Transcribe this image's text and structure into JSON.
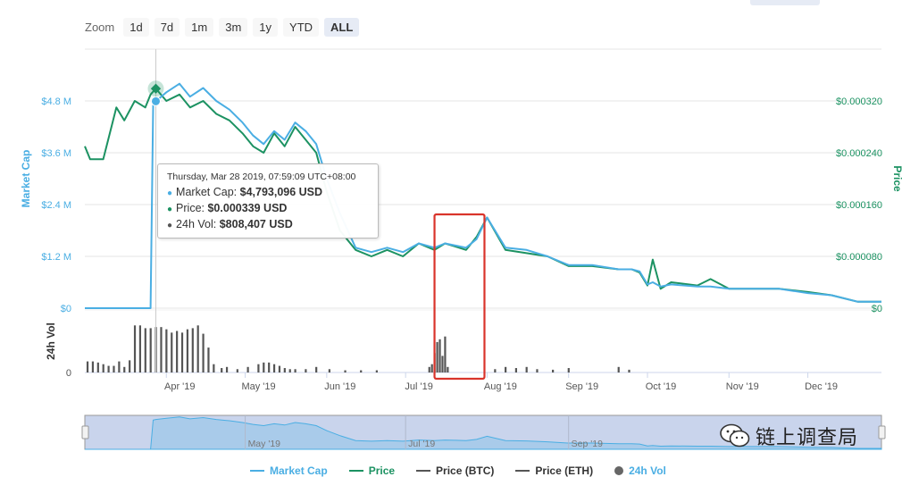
{
  "zoom": {
    "label": "Zoom",
    "buttons": [
      "1d",
      "7d",
      "1m",
      "3m",
      "1y",
      "YTD",
      "ALL"
    ],
    "active": "ALL"
  },
  "tooltip": {
    "date": "Thursday, Mar 28 2019, 07:59:09 UTC+08:00",
    "market_cap_label": "Market Cap:",
    "market_cap_value": "$4,793,096 USD",
    "price_label": "Price:",
    "price_value": "$0.000339 USD",
    "vol_label": "24h Vol:",
    "vol_value": "$808,407 USD"
  },
  "legend": [
    {
      "label": "Market Cap",
      "color": "#4aaee3",
      "kind": "line"
    },
    {
      "label": "Price",
      "color": "#1c9262",
      "kind": "line"
    },
    {
      "label": "Price (BTC)",
      "color": "#555555",
      "kind": "line"
    },
    {
      "label": "Price (ETH)",
      "color": "#555555",
      "kind": "line"
    },
    {
      "label": "24h Vol",
      "color": "#666666",
      "kind": "dot"
    }
  ],
  "navigator": {
    "ticks": [
      "May '19",
      "Jul '19",
      "Sep '19"
    ]
  },
  "watermark": "链上调查局",
  "colors": {
    "market_cap": "#4aaee3",
    "price": "#1c9262",
    "volume": "#555555",
    "highlight": "#d9342b",
    "navigator_fill": "#c9d4ec"
  },
  "chart_data": {
    "type": "line",
    "x_tick_labels": [
      "Apr '19",
      "May '19",
      "Jun '19",
      "Jul '19",
      "Aug '19",
      "Sep '19",
      "Oct '19",
      "Nov '19",
      "Dec '19"
    ],
    "x_tick_dates": [
      "2019-04-01",
      "2019-05-01",
      "2019-06-01",
      "2019-07-01",
      "2019-08-01",
      "2019-09-01",
      "2019-10-01",
      "2019-11-01",
      "2019-12-01"
    ],
    "x_range": [
      "2019-03-01",
      "2019-12-29"
    ],
    "y_left": {
      "label": "Market Cap",
      "ticks": [
        "$0",
        "$1.2 M",
        "$2.4 M",
        "$3.6 M",
        "$4.8 M"
      ],
      "ylim": [
        0,
        6000000
      ]
    },
    "y_right": {
      "label": "Price",
      "ticks": [
        "$0",
        "$0.000080",
        "$0.000160",
        "$0.000240",
        "$0.000320"
      ],
      "ylim": [
        0,
        0.0004
      ]
    },
    "y_vol": {
      "label": "24h Vol",
      "ticks": [
        "0"
      ]
    },
    "series": [
      {
        "name": "Market Cap",
        "x": [
          "2019-03-01",
          "2019-03-20",
          "2019-03-26",
          "2019-03-27",
          "2019-03-28",
          "2019-04-01",
          "2019-04-06",
          "2019-04-10",
          "2019-04-15",
          "2019-04-20",
          "2019-04-25",
          "2019-04-30",
          "2019-05-04",
          "2019-05-08",
          "2019-05-12",
          "2019-05-16",
          "2019-05-20",
          "2019-05-24",
          "2019-05-28",
          "2019-06-01",
          "2019-06-06",
          "2019-06-12",
          "2019-06-18",
          "2019-06-24",
          "2019-06-30",
          "2019-07-06",
          "2019-07-12",
          "2019-07-16",
          "2019-07-20",
          "2019-07-24",
          "2019-07-28",
          "2019-08-01",
          "2019-08-08",
          "2019-08-16",
          "2019-08-24",
          "2019-09-01",
          "2019-09-10",
          "2019-09-20",
          "2019-09-25",
          "2019-09-28",
          "2019-10-01",
          "2019-10-03",
          "2019-10-06",
          "2019-10-10",
          "2019-10-20",
          "2019-10-25",
          "2019-11-01",
          "2019-11-10",
          "2019-11-20",
          "2019-12-01",
          "2019-12-10",
          "2019-12-20",
          "2019-12-29"
        ],
        "y": [
          0,
          0,
          0,
          4700000,
          4793096,
          5000000,
          5200000,
          4900000,
          5100000,
          4800000,
          4600000,
          4300000,
          4000000,
          3800000,
          4100000,
          3900000,
          4300000,
          4100000,
          3800000,
          3000000,
          2200000,
          1400000,
          1300000,
          1400000,
          1300000,
          1500000,
          1400000,
          1500000,
          1450000,
          1400000,
          1600000,
          2100000,
          1400000,
          1350000,
          1200000,
          1000000,
          1000000,
          900000,
          900000,
          850000,
          550000,
          600000,
          500000,
          550000,
          500000,
          500000,
          450000,
          450000,
          450000,
          350000,
          300000,
          150000,
          150000
        ]
      },
      {
        "name": "Price",
        "x": [
          "2019-03-01",
          "2019-03-03",
          "2019-03-08",
          "2019-03-13",
          "2019-03-16",
          "2019-03-20",
          "2019-03-24",
          "2019-03-26",
          "2019-03-28",
          "2019-04-01",
          "2019-04-06",
          "2019-04-10",
          "2019-04-15",
          "2019-04-20",
          "2019-04-25",
          "2019-04-30",
          "2019-05-04",
          "2019-05-08",
          "2019-05-12",
          "2019-05-16",
          "2019-05-20",
          "2019-05-24",
          "2019-05-28",
          "2019-06-01",
          "2019-06-06",
          "2019-06-12",
          "2019-06-18",
          "2019-06-24",
          "2019-06-30",
          "2019-07-06",
          "2019-07-12",
          "2019-07-16",
          "2019-07-20",
          "2019-07-24",
          "2019-07-28",
          "2019-08-01",
          "2019-08-08",
          "2019-08-16",
          "2019-08-24",
          "2019-09-01",
          "2019-09-10",
          "2019-09-20",
          "2019-09-25",
          "2019-09-28",
          "2019-10-01",
          "2019-10-03",
          "2019-10-06",
          "2019-10-10",
          "2019-10-20",
          "2019-10-25",
          "2019-11-01",
          "2019-11-10",
          "2019-11-20",
          "2019-12-01",
          "2019-12-10",
          "2019-12-20",
          "2019-12-29"
        ],
        "y": [
          0.00025,
          0.00023,
          0.00023,
          0.00031,
          0.00029,
          0.00032,
          0.00031,
          0.00033,
          0.000339,
          0.00032,
          0.00033,
          0.00031,
          0.00032,
          0.0003,
          0.00029,
          0.00027,
          0.00025,
          0.00024,
          0.00027,
          0.00025,
          0.00028,
          0.00026,
          0.00024,
          0.00018,
          0.00012,
          9e-05,
          8e-05,
          9e-05,
          8e-05,
          0.0001,
          9e-05,
          0.0001,
          9.5e-05,
          9e-05,
          0.00011,
          0.00014,
          9e-05,
          8.5e-05,
          8e-05,
          6.5e-05,
          6.5e-05,
          6e-05,
          6e-05,
          5.5e-05,
          3.5e-05,
          7.5e-05,
          3e-05,
          4e-05,
          3.5e-05,
          4.5e-05,
          3e-05,
          3e-05,
          3e-05,
          2.5e-05,
          2e-05,
          1e-05,
          1e-05
        ]
      }
    ],
    "volume": {
      "name": "24h Vol",
      "x": [
        "2019-03-02",
        "2019-03-04",
        "2019-03-06",
        "2019-03-08",
        "2019-03-10",
        "2019-03-12",
        "2019-03-14",
        "2019-03-16",
        "2019-03-18",
        "2019-03-20",
        "2019-03-22",
        "2019-03-24",
        "2019-03-26",
        "2019-03-28",
        "2019-03-30",
        "2019-04-01",
        "2019-04-03",
        "2019-04-05",
        "2019-04-07",
        "2019-04-09",
        "2019-04-11",
        "2019-04-13",
        "2019-04-15",
        "2019-04-17",
        "2019-04-19",
        "2019-04-22",
        "2019-04-24",
        "2019-04-28",
        "2019-05-02",
        "2019-05-06",
        "2019-05-08",
        "2019-05-10",
        "2019-05-12",
        "2019-05-14",
        "2019-05-16",
        "2019-05-18",
        "2019-05-20",
        "2019-05-24",
        "2019-05-28",
        "2019-06-02",
        "2019-06-08",
        "2019-06-14",
        "2019-06-20",
        "2019-07-10",
        "2019-07-11",
        "2019-07-12",
        "2019-07-13",
        "2019-07-14",
        "2019-07-15",
        "2019-07-16",
        "2019-07-17",
        "2019-08-04",
        "2019-08-08",
        "2019-08-12",
        "2019-08-16",
        "2019-08-20",
        "2019-08-26",
        "2019-09-01",
        "2019-09-20",
        "2019-09-24"
      ],
      "y": [
        0.2,
        0.2,
        0.18,
        0.15,
        0.12,
        0.12,
        0.2,
        0.1,
        0.22,
        0.85,
        0.85,
        0.8,
        0.8,
        0.82,
        0.82,
        0.78,
        0.72,
        0.75,
        0.72,
        0.78,
        0.8,
        0.85,
        0.7,
        0.45,
        0.15,
        0.08,
        0.1,
        0.06,
        0.1,
        0.15,
        0.18,
        0.18,
        0.15,
        0.12,
        0.08,
        0.06,
        0.06,
        0.06,
        0.1,
        0.06,
        0.04,
        0.04,
        0.04,
        0.1,
        0.15,
        0.35,
        0.55,
        0.6,
        0.3,
        0.65,
        0.1,
        0.06,
        0.1,
        0.08,
        0.1,
        0.06,
        0.05,
        0.08,
        0.1,
        0.05
      ]
    },
    "highlight_range": [
      "2019-07-12",
      "2019-07-31"
    ],
    "grid": true,
    "legend_position": "bottom"
  }
}
